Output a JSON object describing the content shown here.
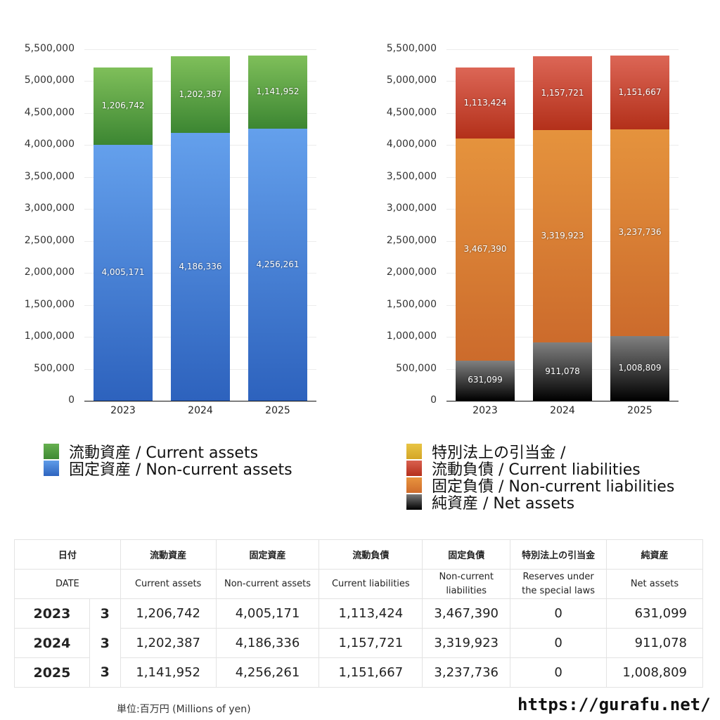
{
  "chart_data": [
    {
      "type": "bar",
      "stacked": true,
      "title": "",
      "categories": [
        "2023",
        "2024",
        "2025"
      ],
      "series": [
        {
          "name": "固定資産 / Non-current assets",
          "color": "#3f7fd6",
          "values": [
            4005171,
            4186336,
            4256261
          ]
        },
        {
          "name": "流動資産 / Current assets",
          "color": "#4c9b3f",
          "values": [
            1206742,
            1202387,
            1141952
          ]
        }
      ],
      "ylim": [
        0,
        5500000
      ],
      "yticks": [
        "5,500,000",
        "5,000,000",
        "4,500,000",
        "4,000,000",
        "3,500,000",
        "3,000,000",
        "2,500,000",
        "2,000,000",
        "1,500,000",
        "1,000,000",
        "500,000",
        "0"
      ],
      "xlabel": "",
      "ylabel": "",
      "grid": true
    },
    {
      "type": "bar",
      "stacked": true,
      "title": "",
      "categories": [
        "2023",
        "2024",
        "2025"
      ],
      "series": [
        {
          "name": "純資産 / Net assets",
          "color": "#333333",
          "values": [
            631099,
            911078,
            1008809
          ]
        },
        {
          "name": "固定負債 / Non-current liabilities",
          "color": "#d97a30",
          "values": [
            3467390,
            3319923,
            3237736
          ]
        },
        {
          "name": "流動負債 / Current liabilities",
          "color": "#c8412c",
          "values": [
            1113424,
            1157721,
            1151667
          ]
        },
        {
          "name": "特別法上の引当金 /",
          "color": "#e0b830",
          "values": [
            0,
            0,
            0
          ]
        }
      ],
      "ylim": [
        0,
        5500000
      ],
      "yticks": [
        "5,500,000",
        "5,000,000",
        "4,500,000",
        "4,000,000",
        "3,500,000",
        "3,000,000",
        "2,500,000",
        "2,000,000",
        "1,500,000",
        "1,000,000",
        "500,000",
        "0"
      ],
      "xlabel": "",
      "ylabel": "",
      "grid": true
    }
  ],
  "left_chart": {
    "yticks": [
      "5,500,000",
      "5,000,000",
      "4,500,000",
      "4,000,000",
      "3,500,000",
      "3,000,000",
      "2,500,000",
      "2,000,000",
      "1,500,000",
      "1,000,000",
      "500,000",
      "0"
    ],
    "bars": [
      {
        "year": "2023",
        "noncurrent": "4,005,171",
        "current": "1,206,742"
      },
      {
        "year": "2024",
        "noncurrent": "4,186,336",
        "current": "1,202,387"
      },
      {
        "year": "2025",
        "noncurrent": "4,256,261",
        "current": "1,141,952"
      }
    ],
    "legend": [
      {
        "label": "流動資産 / Current assets",
        "color": "#4c9b3f"
      },
      {
        "label": "固定資産 / Non-current assets",
        "color": "#3f7fd6"
      }
    ]
  },
  "right_chart": {
    "yticks": [
      "5,500,000",
      "5,000,000",
      "4,500,000",
      "4,000,000",
      "3,500,000",
      "3,000,000",
      "2,500,000",
      "2,000,000",
      "1,500,000",
      "1,000,000",
      "500,000",
      "0"
    ],
    "bars": [
      {
        "year": "2023",
        "net": "631,099",
        "noncurrent": "3,467,390",
        "current": "1,113,424"
      },
      {
        "year": "2024",
        "net": "911,078",
        "noncurrent": "3,319,923",
        "current": "1,157,721"
      },
      {
        "year": "2025",
        "net": "1,008,809",
        "noncurrent": "3,237,736",
        "current": "1,151,667"
      }
    ],
    "legend": [
      {
        "label": "特別法上の引当金 /",
        "color": "#e0b830"
      },
      {
        "label": "流動負債 / Current liabilities",
        "color": "#c8412c"
      },
      {
        "label": "固定負債 / Non-current liabilities",
        "color": "#d97a30"
      },
      {
        "label": "純資産 / Net assets",
        "color": "#333333"
      }
    ]
  },
  "table": {
    "header_jp": [
      "日付",
      "流動資産",
      "固定資産",
      "流動負債",
      "固定負債",
      "特別法上の引当金",
      "純資産"
    ],
    "header_en": [
      "DATE",
      "Current assets",
      "Non-current assets",
      "Current liabilities",
      "Non-current liabilities",
      "Reserves under the special laws",
      "Net assets"
    ],
    "rows": [
      {
        "year": "2023",
        "month": "3",
        "cells": [
          "1,206,742",
          "4,005,171",
          "1,113,424",
          "3,467,390",
          "0",
          "631,099"
        ]
      },
      {
        "year": "2024",
        "month": "3",
        "cells": [
          "1,202,387",
          "4,186,336",
          "1,157,721",
          "3,319,923",
          "0",
          "911,078"
        ]
      },
      {
        "year": "2025",
        "month": "3",
        "cells": [
          "1,141,952",
          "4,256,261",
          "1,151,667",
          "3,237,736",
          "0",
          "1,008,809"
        ]
      }
    ]
  },
  "footer": {
    "unit": "単位:百万円 (Millions of yen)",
    "site": "https://gurafu.net/"
  }
}
